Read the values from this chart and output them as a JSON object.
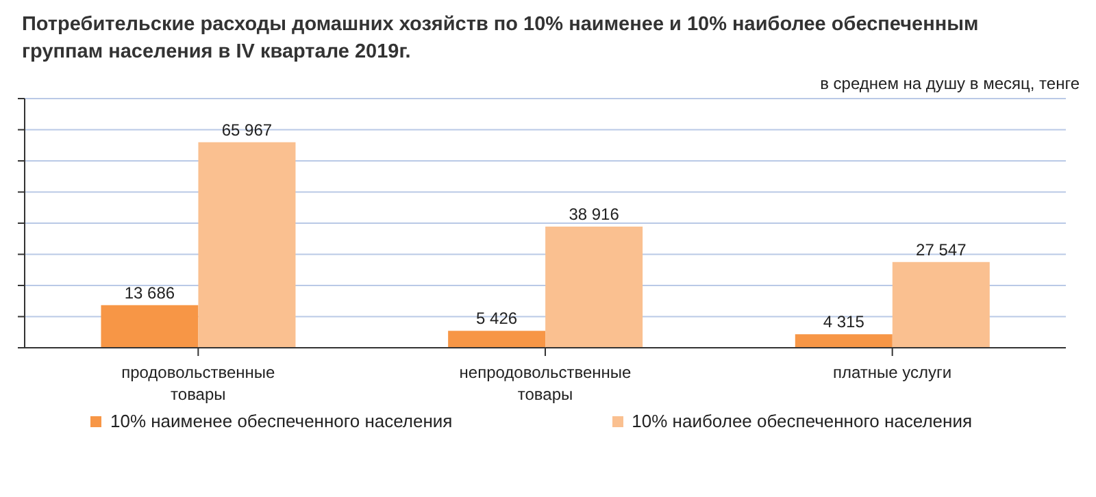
{
  "chart_data": {
    "type": "bar",
    "title": "Потребительские расходы домашних хозяйств по 10% наименее и 10% наиболее обеспеченным группам населения в IV квартале 2019г.",
    "annotations": [
      "в среднем на душу в месяц, тенге"
    ],
    "categories": [
      "продовольственные товары",
      "непродовольственные товары",
      "платные услуги"
    ],
    "series": [
      {
        "name": "10% наименее обеспеченного населения",
        "color": "#f79646",
        "values": [
          13686,
          5426,
          4315
        ],
        "value_labels": [
          "13 686",
          "5 426",
          "4 315"
        ]
      },
      {
        "name": "10% наиболее обеспеченного населения",
        "color": "#fac090",
        "values": [
          65967,
          38916,
          27547
        ],
        "value_labels": [
          "65 967",
          "38 916",
          "27 547"
        ]
      }
    ],
    "ylim": [
      0,
      80000
    ],
    "yticks": [
      {
        "value": 0,
        "label": null
      },
      {
        "value": 10000,
        "label": null
      },
      {
        "value": 20000,
        "label": null
      },
      {
        "value": 30000,
        "label": null
      },
      {
        "value": 40000,
        "label": null
      },
      {
        "value": 50000,
        "label": null
      },
      {
        "value": 60000,
        "label": null
      },
      {
        "value": 70000,
        "label": null
      },
      {
        "value": 80000,
        "label": null
      }
    ],
    "tick_labels": "x",
    "grid": "y",
    "legend": "bottom"
  }
}
